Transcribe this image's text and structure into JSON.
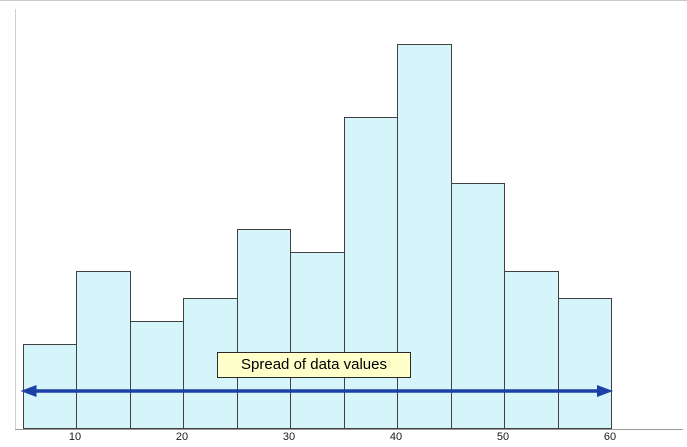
{
  "chart_data": {
    "type": "bar",
    "subtype": "histogram",
    "title": "",
    "xlabel": "",
    "ylabel": "",
    "bin_edges": [
      5,
      10,
      15,
      20,
      25,
      30,
      35,
      40,
      45,
      50,
      55,
      60
    ],
    "values": [
      22,
      41,
      28,
      34,
      52,
      46,
      81,
      100,
      64,
      41,
      34
    ],
    "x_ticks": [
      10,
      20,
      30,
      40,
      50,
      60
    ],
    "x_tick_labels": [
      "10",
      "20",
      "30",
      "40",
      "50",
      "60"
    ],
    "xlim": [
      4.4,
      66
    ],
    "ylim": [
      0,
      100
    ],
    "grid": false,
    "legend": "none",
    "annotation": {
      "label": "Spread of data values",
      "arrow_from": 5,
      "arrow_to": 60,
      "arrow_style": "double-headed"
    },
    "colors": {
      "bar_fill": "#d6f5fa",
      "bar_border": "#404040",
      "arrow": "#1c3fa8",
      "label_bg": "#feffc9",
      "label_border": "#2a2a2a",
      "axis_line": "#9a9a9a"
    }
  }
}
